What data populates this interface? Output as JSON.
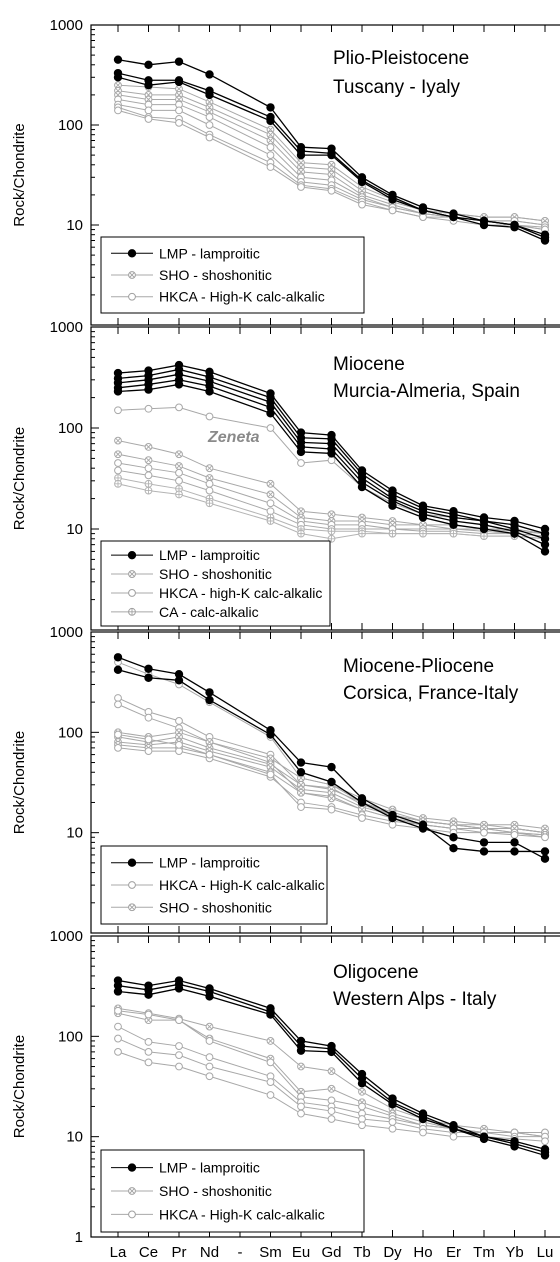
{
  "figure": {
    "ylabel": "Rock/Chondrite",
    "xcategories": [
      "La",
      "Ce",
      "Pr",
      "Nd",
      "-",
      "Sm",
      "Eu",
      "Gd",
      "Tb",
      "Dy",
      "Ho",
      "Er",
      "Tm",
      "Yb",
      "Lu"
    ]
  },
  "chart_data": [
    {
      "type": "line",
      "title": "Plio-Pleistocene",
      "subtitle": "Tuscany - Iyaly",
      "ylabel": "Rock/Chondrite",
      "yscale": "log",
      "ylim": [
        1,
        1000
      ],
      "ytick_labels": [
        "1000",
        "100",
        "10"
      ],
      "categories": [
        "La",
        "Ce",
        "Pr",
        "Nd",
        "-",
        "Sm",
        "Eu",
        "Gd",
        "Tb",
        "Dy",
        "Ho",
        "Er",
        "Tm",
        "Yb",
        "Lu"
      ],
      "legend": [
        {
          "label": "LMP - lamproitic",
          "marker": "filled-circle",
          "color": "#000000"
        },
        {
          "label": "SHO - shoshonitic",
          "marker": "crossed-circle",
          "color": "#a0a0a0"
        },
        {
          "label": "HKCA - High-K calc-alkalic",
          "marker": "open-circle",
          "color": "#a0a0a0"
        }
      ],
      "series": [
        {
          "group": "LMP",
          "values": [
            450,
            400,
            430,
            320,
            null,
            150,
            60,
            58,
            30,
            20,
            15,
            13,
            11,
            10,
            8
          ]
        },
        {
          "group": "LMP",
          "values": [
            330,
            280,
            280,
            220,
            null,
            120,
            55,
            52,
            28,
            19,
            14,
            12,
            11,
            10,
            7.5
          ]
        },
        {
          "group": "LMP",
          "values": [
            300,
            250,
            270,
            200,
            null,
            110,
            50,
            50,
            27,
            18,
            14,
            12,
            10,
            9.5,
            7
          ]
        },
        {
          "group": "SHO",
          "values": [
            250,
            240,
            230,
            170,
            null,
            90,
            42,
            40,
            24,
            18,
            14,
            13,
            12,
            12,
            11
          ]
        },
        {
          "group": "SHO",
          "values": [
            220,
            200,
            200,
            150,
            null,
            80,
            38,
            36,
            22,
            17,
            14,
            13,
            12,
            12,
            11
          ]
        },
        {
          "group": "SHO",
          "values": [
            200,
            180,
            180,
            135,
            null,
            70,
            34,
            32,
            20,
            16,
            13,
            12,
            11,
            11,
            10
          ]
        },
        {
          "group": "HKCA",
          "values": [
            180,
            160,
            160,
            120,
            null,
            60,
            30,
            28,
            19,
            15,
            13,
            12,
            11,
            11,
            10
          ]
        },
        {
          "group": "HKCA",
          "values": [
            160,
            140,
            140,
            100,
            null,
            50,
            27,
            25,
            18,
            15,
            13,
            12,
            11,
            10,
            9.5
          ]
        },
        {
          "group": "HKCA",
          "values": [
            150,
            120,
            115,
            80,
            null,
            42,
            25,
            23,
            17,
            14,
            12,
            12,
            11,
            10,
            9
          ]
        },
        {
          "group": "HKCA",
          "values": [
            140,
            115,
            105,
            75,
            null,
            38,
            24,
            22,
            16,
            14,
            12,
            11,
            10,
            10,
            9
          ]
        }
      ]
    },
    {
      "type": "line",
      "title": "Miocene",
      "subtitle": "Murcia-Almeria, Spain",
      "annotation": "Zeneta",
      "ylabel": "Rock/Chondrite",
      "yscale": "log",
      "ylim": [
        1,
        1000
      ],
      "ytick_labels": [
        "1000",
        "100",
        "10"
      ],
      "categories": [
        "La",
        "Ce",
        "Pr",
        "Nd",
        "-",
        "Sm",
        "Eu",
        "Gd",
        "Tb",
        "Dy",
        "Ho",
        "Er",
        "Tm",
        "Yb",
        "Lu"
      ],
      "legend": [
        {
          "label": "LMP - lamproitic",
          "marker": "filled-circle",
          "color": "#000000"
        },
        {
          "label": "SHO - shoshonitic",
          "marker": "crossed-circle",
          "color": "#a0a0a0"
        },
        {
          "label": "HKCA - high-K calc-alkalic",
          "marker": "open-circle",
          "color": "#a0a0a0"
        },
        {
          "label": "CA - calc-alkalic",
          "marker": "plus-circle",
          "color": "#a0a0a0"
        }
      ],
      "series": [
        {
          "group": "LMP",
          "values": [
            350,
            370,
            420,
            360,
            null,
            220,
            90,
            85,
            38,
            24,
            17,
            15,
            13,
            12,
            10
          ]
        },
        {
          "group": "LMP",
          "values": [
            310,
            330,
            380,
            320,
            null,
            200,
            80,
            78,
            35,
            22,
            16,
            14,
            12,
            11,
            9
          ]
        },
        {
          "group": "LMP",
          "values": [
            280,
            300,
            340,
            290,
            null,
            180,
            72,
            70,
            32,
            20,
            15,
            13,
            12,
            10,
            8
          ]
        },
        {
          "group": "LMP",
          "values": [
            250,
            270,
            300,
            260,
            null,
            160,
            65,
            62,
            29,
            19,
            14,
            12,
            11,
            9.5,
            7
          ]
        },
        {
          "group": "LMP",
          "values": [
            230,
            240,
            270,
            230,
            null,
            140,
            58,
            56,
            26,
            17,
            13,
            11,
            10,
            9,
            6
          ]
        },
        {
          "group": "HKCA",
          "values": [
            150,
            155,
            160,
            130,
            null,
            100,
            45,
            48,
            26,
            18,
            14,
            13,
            12,
            11,
            9
          ]
        },
        {
          "group": "SHO",
          "values": [
            75,
            65,
            55,
            40,
            null,
            28,
            15,
            14,
            13,
            12,
            11,
            11,
            10,
            10,
            9
          ]
        },
        {
          "group": "SHO",
          "values": [
            55,
            48,
            42,
            32,
            null,
            22,
            13,
            12,
            12,
            11,
            11,
            10,
            10,
            9.5,
            9
          ]
        },
        {
          "group": "HKCA",
          "values": [
            45,
            40,
            36,
            28,
            null,
            18,
            12,
            11,
            11,
            10,
            10,
            10,
            9.5,
            9,
            8.5
          ]
        },
        {
          "group": "HKCA",
          "values": [
            38,
            34,
            30,
            24,
            null,
            15,
            11,
            10,
            10,
            10,
            9.5,
            9.5,
            9,
            9,
            8.5
          ]
        },
        {
          "group": "CA",
          "values": [
            32,
            28,
            25,
            20,
            null,
            13,
            10,
            9.5,
            9.5,
            9,
            9,
            9,
            8.5,
            8.5,
            8
          ]
        },
        {
          "group": "CA",
          "values": [
            28,
            24,
            22,
            18,
            null,
            12,
            9,
            8,
            9,
            9,
            9,
            9,
            8.5,
            8.5,
            8
          ]
        }
      ]
    },
    {
      "type": "line",
      "title": "Miocene-Pliocene",
      "subtitle": "Corsica, France-Italy",
      "ylabel": "Rock/Chondrite",
      "yscale": "log",
      "ylim": [
        1,
        1000
      ],
      "ytick_labels": [
        "1000",
        "100",
        "10"
      ],
      "categories": [
        "La",
        "Ce",
        "Pr",
        "Nd",
        "-",
        "Sm",
        "Eu",
        "Gd",
        "Tb",
        "Dy",
        "Ho",
        "Er",
        "Tm",
        "Yb",
        "Lu"
      ],
      "legend": [
        {
          "label": "LMP - lamproitic",
          "marker": "filled-circle",
          "color": "#000000"
        },
        {
          "label": "HKCA - High-K calc-alkalic",
          "marker": "open-circle",
          "color": "#a0a0a0"
        },
        {
          "label": "SHO - shoshonitic",
          "marker": "crossed-circle",
          "color": "#a0a0a0"
        }
      ],
      "series": [
        {
          "group": "LMP",
          "values": [
            560,
            430,
            380,
            250,
            null,
            105,
            50,
            45,
            22,
            15,
            12,
            7,
            6.5,
            6.5,
            6.5
          ]
        },
        {
          "group": "LMP",
          "values": [
            420,
            350,
            330,
            210,
            null,
            95,
            40,
            32,
            20,
            14,
            11,
            9,
            8,
            8,
            5.5
          ]
        },
        {
          "group": "HKCA",
          "values": [
            500,
            380,
            300,
            200,
            null,
            90,
            35,
            30,
            20,
            15,
            13,
            12,
            11,
            11,
            10
          ]
        },
        {
          "group": "HKCA",
          "values": [
            220,
            160,
            130,
            90,
            null,
            60,
            30,
            28,
            19,
            15,
            13,
            12,
            11,
            11,
            10
          ]
        },
        {
          "group": "HKCA",
          "values": [
            190,
            140,
            110,
            80,
            null,
            50,
            25,
            23,
            17,
            14,
            12,
            11,
            11,
            10,
            9.5
          ]
        },
        {
          "group": "SHO",
          "values": [
            100,
            90,
            100,
            80,
            null,
            55,
            35,
            30,
            22,
            17,
            14,
            13,
            12,
            12,
            11
          ]
        },
        {
          "group": "SHO",
          "values": [
            90,
            80,
            90,
            70,
            null,
            48,
            30,
            27,
            20,
            16,
            13,
            12,
            12,
            11,
            10
          ]
        },
        {
          "group": "SHO",
          "values": [
            80,
            75,
            80,
            65,
            null,
            45,
            27,
            25,
            18,
            15,
            13,
            12,
            11,
            11,
            10
          ]
        },
        {
          "group": "SHO",
          "values": [
            75,
            70,
            70,
            60,
            null,
            40,
            25,
            22,
            17,
            14,
            12,
            11,
            11,
            10,
            9.5
          ]
        },
        {
          "group": "HKCA",
          "values": [
            70,
            65,
            65,
            55,
            null,
            36,
            20,
            18,
            15,
            13,
            12,
            11,
            10,
            10,
            9
          ]
        },
        {
          "group": "HKCA",
          "values": [
            95,
            85,
            75,
            60,
            null,
            38,
            18,
            17,
            14,
            12,
            11,
            10,
            10,
            9.5,
            9
          ]
        }
      ]
    },
    {
      "type": "line",
      "title": "Oligocene",
      "subtitle": "Western Alps - Italy",
      "ylabel": "Rock/Chondrite",
      "yscale": "log",
      "ylim": [
        1,
        1000
      ],
      "ytick_labels": [
        "1000",
        "100",
        "10",
        "1"
      ],
      "categories": [
        "La",
        "Ce",
        "Pr",
        "Nd",
        "-",
        "Sm",
        "Eu",
        "Gd",
        "Tb",
        "Dy",
        "Ho",
        "Er",
        "Tm",
        "Yb",
        "Lu"
      ],
      "legend": [
        {
          "label": "LMP - lamproitic",
          "marker": "filled-circle",
          "color": "#000000"
        },
        {
          "label": "SHO - shoshonitic",
          "marker": "crossed-circle",
          "color": "#a0a0a0"
        },
        {
          "label": "HKCA - High-K calc-alkalic",
          "marker": "open-circle",
          "color": "#a0a0a0"
        }
      ],
      "series": [
        {
          "group": "LMP",
          "values": [
            360,
            320,
            360,
            300,
            null,
            190,
            90,
            80,
            42,
            24,
            17,
            13,
            10,
            9,
            7.5
          ]
        },
        {
          "group": "LMP",
          "values": [
            320,
            290,
            330,
            280,
            null,
            175,
            80,
            75,
            38,
            22,
            16,
            12,
            10,
            8.5,
            7
          ]
        },
        {
          "group": "LMP",
          "values": [
            280,
            260,
            300,
            250,
            null,
            165,
            72,
            70,
            34,
            21,
            15,
            12,
            9.5,
            8,
            6.5
          ]
        },
        {
          "group": "SHO",
          "values": [
            190,
            170,
            150,
            125,
            null,
            90,
            50,
            45,
            28,
            19,
            15,
            13,
            12,
            11,
            11
          ]
        },
        {
          "group": "SHO",
          "values": [
            170,
            145,
            145,
            95,
            null,
            60,
            28,
            30,
            22,
            17,
            14,
            12,
            11,
            11,
            10
          ]
        },
        {
          "group": "HKCA",
          "values": [
            180,
            165,
            145,
            90,
            null,
            55,
            25,
            23,
            20,
            16,
            13,
            12,
            11,
            11,
            10
          ]
        },
        {
          "group": "HKCA",
          "values": [
            125,
            88,
            80,
            62,
            null,
            40,
            22,
            20,
            17,
            15,
            13,
            12,
            11,
            11,
            11
          ]
        },
        {
          "group": "HKCA",
          "values": [
            95,
            70,
            65,
            50,
            null,
            35,
            20,
            18,
            15,
            14,
            12,
            11,
            11,
            10,
            10
          ]
        },
        {
          "group": "HKCA",
          "values": [
            70,
            55,
            50,
            40,
            null,
            26,
            17,
            15,
            13,
            12,
            11,
            10,
            10,
            9.5,
            9
          ]
        }
      ]
    }
  ]
}
